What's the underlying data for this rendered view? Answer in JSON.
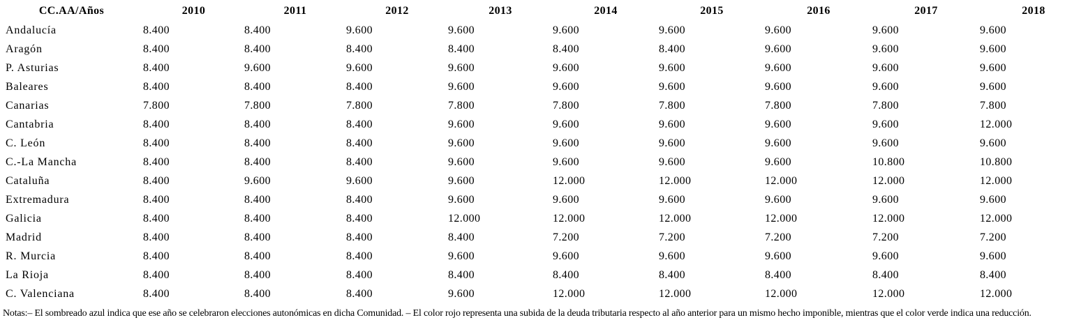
{
  "table": {
    "header": {
      "corner_label": "CC.AA/Años",
      "years": [
        "2010",
        "2011",
        "2012",
        "2013",
        "2014",
        "2015",
        "2016",
        "2017",
        "2018"
      ]
    },
    "rows": [
      {
        "label": "Andalucía",
        "values": [
          "8.400",
          "8.400",
          "9.600",
          "9.600",
          "9.600",
          "9.600",
          "9.600",
          "9.600",
          "9.600"
        ]
      },
      {
        "label": "Aragón",
        "values": [
          "8.400",
          "8.400",
          "8.400",
          "8.400",
          "8.400",
          "8.400",
          "9.600",
          "9.600",
          "9.600"
        ]
      },
      {
        "label": "P. Asturias",
        "values": [
          "8.400",
          "9.600",
          "9.600",
          "9.600",
          "9.600",
          "9.600",
          "9.600",
          "9.600",
          "9.600"
        ]
      },
      {
        "label": "Baleares",
        "values": [
          "8.400",
          "8.400",
          "8.400",
          "9.600",
          "9.600",
          "9.600",
          "9.600",
          "9.600",
          "9.600"
        ]
      },
      {
        "label": "Canarias",
        "values": [
          "7.800",
          "7.800",
          "7.800",
          "7.800",
          "7.800",
          "7.800",
          "7.800",
          "7.800",
          "7.800"
        ]
      },
      {
        "label": "Cantabria",
        "values": [
          "8.400",
          "8.400",
          "8.400",
          "9.600",
          "9.600",
          "9.600",
          "9.600",
          "9.600",
          "12.000"
        ]
      },
      {
        "label": "C. León",
        "values": [
          "8.400",
          "8.400",
          "8.400",
          "9.600",
          "9.600",
          "9.600",
          "9.600",
          "9.600",
          "9.600"
        ]
      },
      {
        "label": "C.-La Mancha",
        "values": [
          "8.400",
          "8.400",
          "8.400",
          "9.600",
          "9.600",
          "9.600",
          "9.600",
          "10.800",
          "10.800"
        ]
      },
      {
        "label": "Cataluña",
        "values": [
          "8.400",
          "9.600",
          "9.600",
          "9.600",
          "12.000",
          "12.000",
          "12.000",
          "12.000",
          "12.000"
        ]
      },
      {
        "label": "Extremadura",
        "values": [
          "8.400",
          "8.400",
          "8.400",
          "9.600",
          "9.600",
          "9.600",
          "9.600",
          "9.600",
          "9.600"
        ]
      },
      {
        "label": "Galicia",
        "values": [
          "8.400",
          "8.400",
          "8.400",
          "12.000",
          "12.000",
          "12.000",
          "12.000",
          "12.000",
          "12.000"
        ]
      },
      {
        "label": "Madrid",
        "values": [
          "8.400",
          "8.400",
          "8.400",
          "8.400",
          "7.200",
          "7.200",
          "7.200",
          "7.200",
          "7.200"
        ]
      },
      {
        "label": "R. Murcia",
        "values": [
          "8.400",
          "8.400",
          "8.400",
          "9.600",
          "9.600",
          "9.600",
          "9.600",
          "9.600",
          "9.600"
        ]
      },
      {
        "label": "La Rioja",
        "values": [
          "8.400",
          "8.400",
          "8.400",
          "8.400",
          "8.400",
          "8.400",
          "8.400",
          "8.400",
          "8.400"
        ]
      },
      {
        "label": "C. Valenciana",
        "values": [
          "8.400",
          "8.400",
          "8.400",
          "9.600",
          "12.000",
          "12.000",
          "12.000",
          "12.000",
          "12.000"
        ]
      }
    ]
  },
  "notes": {
    "text": "Notas:– El sombreado azul indica que ese año se celebraron elecciones autonómicas en dicha Comunidad. – El color rojo representa una subida de la deuda tributaria respecto al año anterior para un mismo hecho imponible, mientras que el color verde indica una reducción."
  },
  "colors": {
    "text": "#000000",
    "background": "#ffffff"
  }
}
